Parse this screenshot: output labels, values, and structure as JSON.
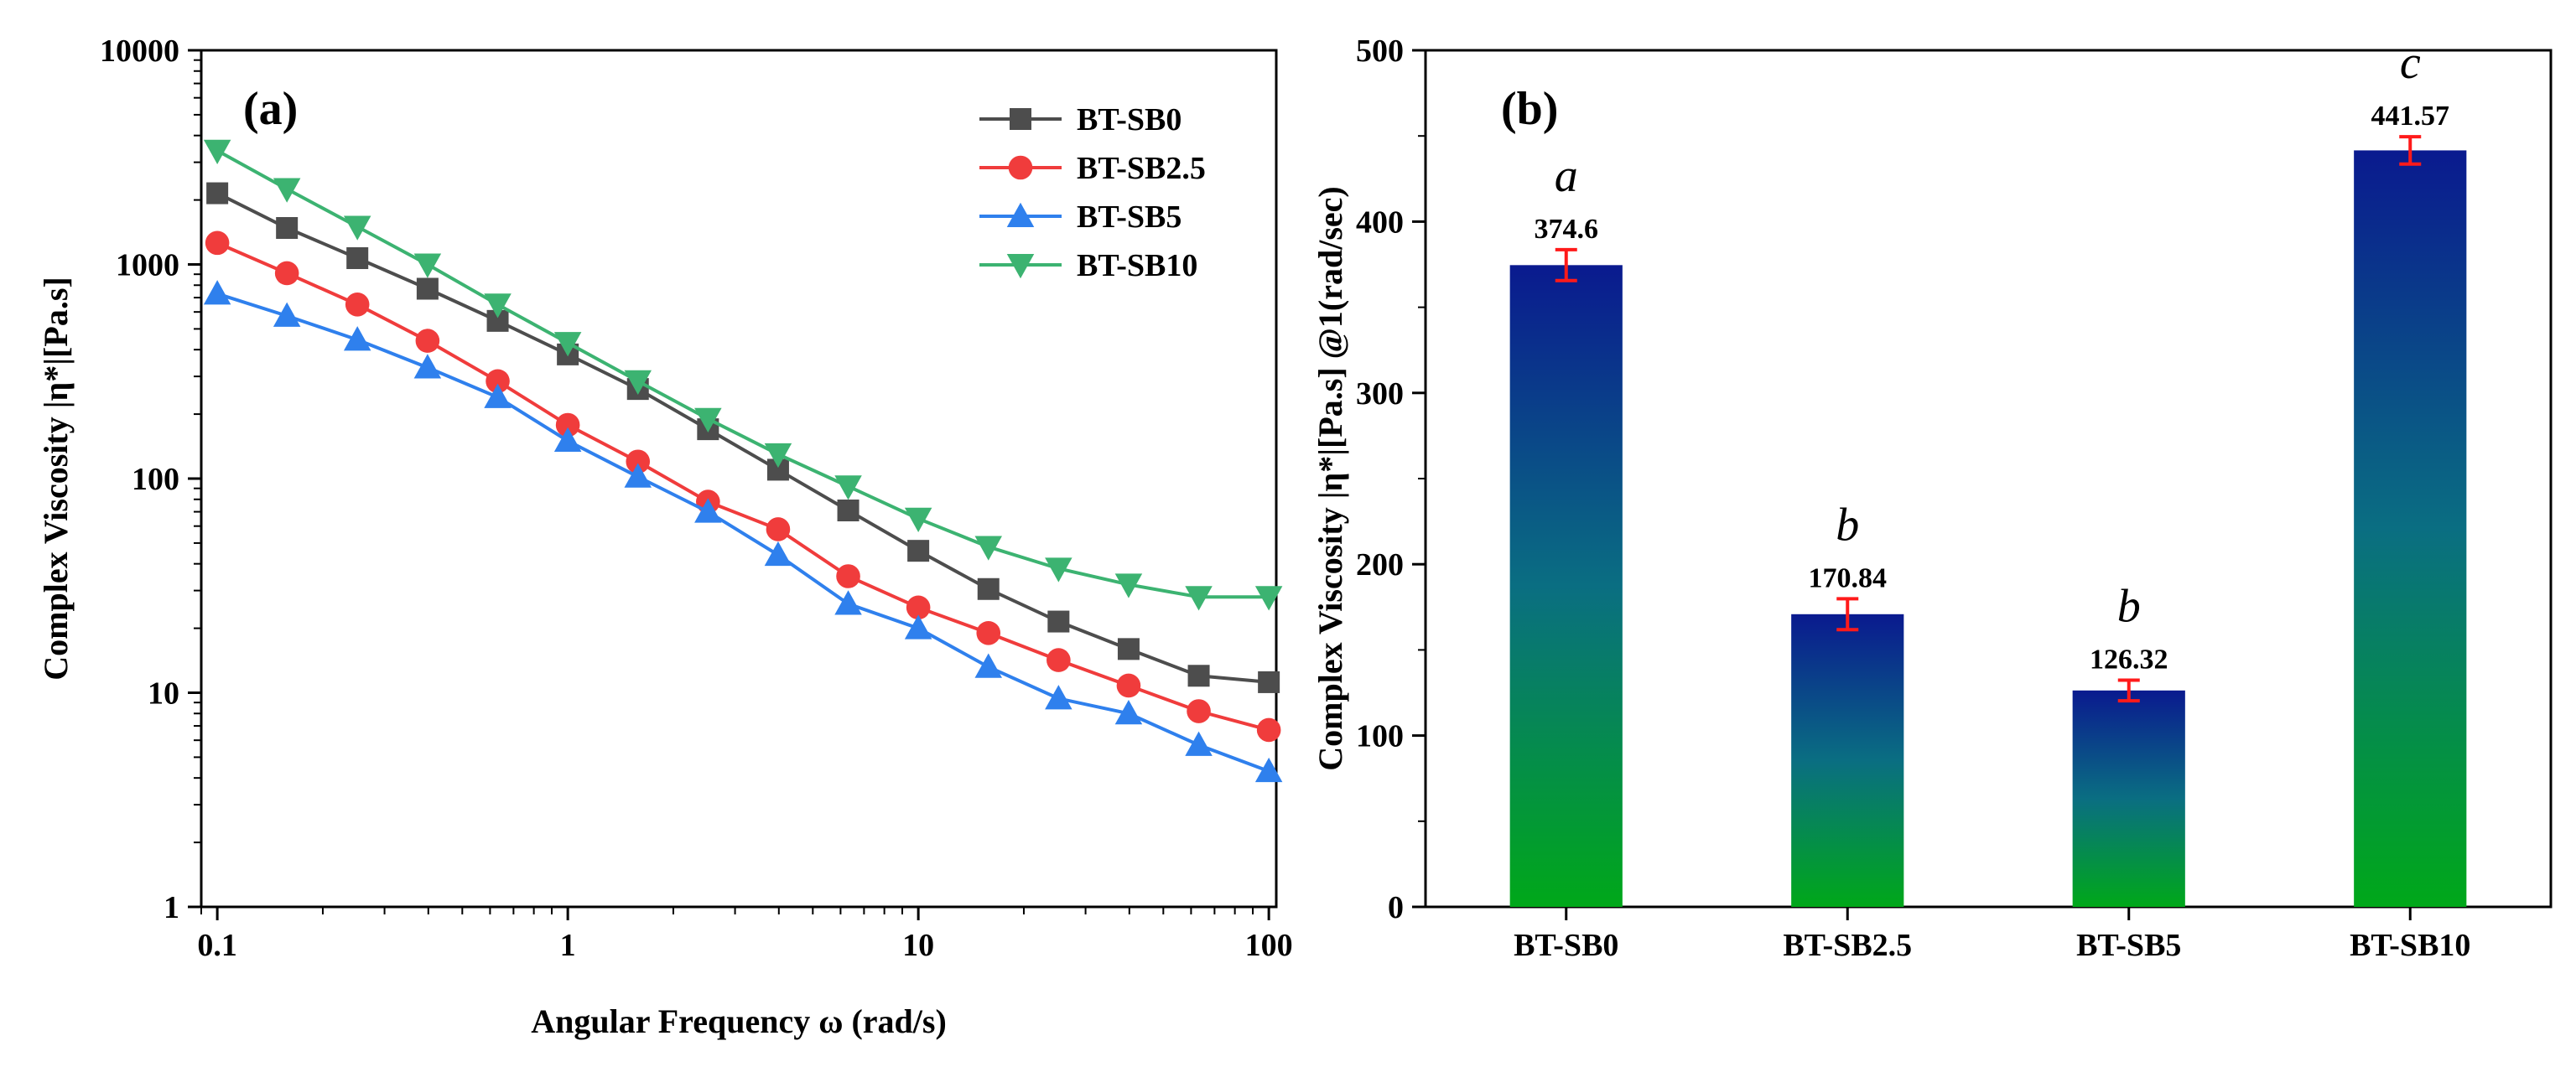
{
  "chart_data": [
    {
      "type": "line",
      "panel_label": "(a)",
      "xlabel": "Angular Frequency ω (rad/s)",
      "ylabel": "Complex Viscosity |η*|[Pa.s]",
      "x_scale": "log",
      "y_scale": "log",
      "xlim": [
        0.09,
        105
      ],
      "ylim": [
        1,
        10000
      ],
      "x_ticks": [
        0.1,
        1,
        10,
        100
      ],
      "x_tick_labels": [
        "0.1",
        "1",
        "10",
        "100"
      ],
      "y_ticks": [
        1,
        10,
        100,
        1000,
        10000
      ],
      "y_tick_labels": [
        "1",
        "10",
        "100",
        "1000",
        "10000"
      ],
      "grid": false,
      "legend_position": "top-right",
      "x": [
        0.1,
        0.158,
        0.251,
        0.398,
        0.631,
        1,
        1.585,
        2.512,
        3.981,
        6.31,
        10,
        15.85,
        25.12,
        39.81,
        63.1,
        100
      ],
      "series": [
        {
          "name": "BT-SB0",
          "color": "#4d4d4d",
          "marker": "square",
          "values": [
            2150,
            1480,
            1070,
            770,
            545,
            380,
            262,
            170,
            110,
            71,
            46,
            30.5,
            21.5,
            16,
            12,
            11.2
          ]
        },
        {
          "name": "BT-SB2.5",
          "color": "#f03c3c",
          "marker": "circle",
          "values": [
            1260,
            910,
            650,
            440,
            285,
            178,
            120,
            78,
            58,
            35,
            25,
            19,
            14.2,
            10.8,
            8.2,
            6.7
          ]
        },
        {
          "name": "BT-SB5",
          "color": "#2f80ed",
          "marker": "triangle-up",
          "values": [
            730,
            575,
            445,
            330,
            240,
            150,
            102,
            70,
            44,
            26,
            20,
            13.2,
            9.4,
            8,
            5.7,
            4.3
          ]
        },
        {
          "name": "BT-SB10",
          "color": "#3cb371",
          "marker": "triangle-down",
          "values": [
            3400,
            2250,
            1500,
            1000,
            650,
            430,
            285,
            190,
            130,
            92,
            65,
            48,
            38,
            32,
            28,
            28
          ]
        }
      ]
    },
    {
      "type": "bar",
      "panel_label": "(b)",
      "xlabel": "",
      "ylabel": "Complex Viscosity |η*|[Pa.s] @1(rad/sec)",
      "ylim": [
        0,
        500
      ],
      "y_ticks": [
        0,
        100,
        200,
        300,
        400,
        500
      ],
      "y_tick_labels": [
        "0",
        "100",
        "200",
        "300",
        "400",
        "500"
      ],
      "grid": false,
      "categories": [
        "BT-SB0",
        "BT-SB2.5",
        "BT-SB5",
        "BT-SB10"
      ],
      "values": [
        374.6,
        170.84,
        126.32,
        441.57
      ],
      "value_labels": [
        "374.6",
        "170.84",
        "126.32",
        "441.57"
      ],
      "errors": [
        9,
        9,
        6,
        8
      ],
      "significance_letters": [
        "a",
        "b",
        "b",
        "c"
      ],
      "bar_gradient": {
        "top": "#0a1a8f",
        "bottom": "#00a819"
      },
      "error_bar_color": "#ff1a1a"
    }
  ]
}
